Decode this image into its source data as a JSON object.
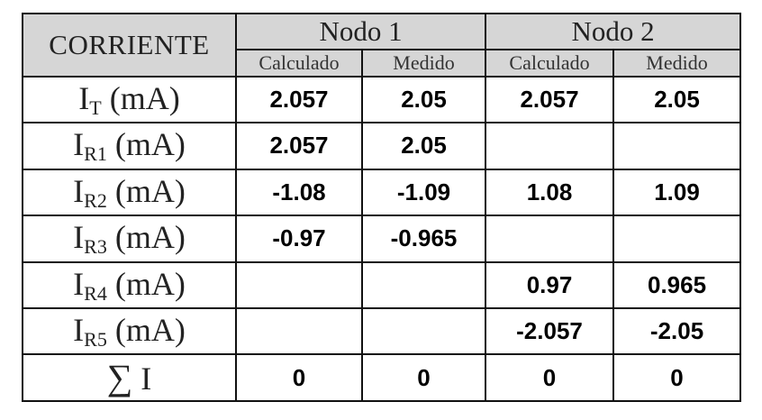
{
  "table": {
    "header": {
      "corner": "CORRIENTE",
      "nodes": [
        "Nodo 1",
        "Nodo 2"
      ],
      "subcolumns": [
        "Calculado",
        "Medido",
        "Calculado",
        "Medido"
      ]
    },
    "rows": [
      {
        "label_main": "I",
        "label_sub": "T",
        "label_unit": " (mA)",
        "values": [
          "2.057",
          "2.05",
          "2.057",
          "2.05"
        ]
      },
      {
        "label_main": "I",
        "label_sub": "R1",
        "label_unit": " (mA)",
        "values": [
          "2.057",
          "2.05",
          "",
          ""
        ]
      },
      {
        "label_main": "I",
        "label_sub": "R2",
        "label_unit": " (mA)",
        "values": [
          "-1.08",
          "-1.09",
          "1.08",
          "1.09"
        ]
      },
      {
        "label_main": "I",
        "label_sub": "R3",
        "label_unit": " (mA)",
        "values": [
          "-0.97",
          "-0.965",
          "",
          ""
        ]
      },
      {
        "label_main": "I",
        "label_sub": "R4",
        "label_unit": " (mA)",
        "values": [
          "",
          "",
          "0.97",
          "0.965"
        ]
      },
      {
        "label_main": "I",
        "label_sub": "R5",
        "label_unit": " (mA)",
        "values": [
          "",
          "",
          "-2.057",
          "-2.05"
        ]
      },
      {
        "label_main": "∑",
        "label_sub": "",
        "label_unit": " I",
        "values": [
          "0",
          "0",
          "0",
          "0"
        ]
      }
    ]
  }
}
